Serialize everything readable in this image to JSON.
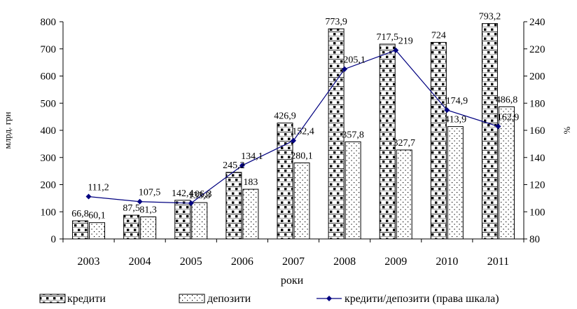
{
  "chart_data": {
    "type": "bar",
    "categories": [
      "2003",
      "2004",
      "2005",
      "2006",
      "2007",
      "2008",
      "2009",
      "2010",
      "2011"
    ],
    "series": [
      {
        "name": "кредити",
        "values": [
          66.8,
          87.5,
          142.4,
          245.2,
          426.9,
          773.9,
          717.5,
          724,
          793.2
        ],
        "labels": [
          "66,8",
          "87,5",
          "142,4",
          "245,2",
          "426,9",
          "773,9",
          "717,5",
          "724",
          "793,2"
        ],
        "axis": "left",
        "pattern": "bricks-dots"
      },
      {
        "name": "депозити",
        "values": [
          60.1,
          81.3,
          133.8,
          183,
          280.1,
          357.8,
          327.7,
          413.9,
          486.8
        ],
        "labels": [
          "60,1",
          "81,3",
          "133,8",
          "183",
          "280,1",
          "357,8",
          "327,7",
          "413,9",
          "486,8"
        ],
        "axis": "left",
        "pattern": "dots"
      },
      {
        "name": "кредити/депозити (права шкала)",
        "type": "line",
        "values": [
          111.2,
          107.5,
          106.3,
          134.1,
          152.4,
          205.1,
          219,
          174.9,
          162.9
        ],
        "labels": [
          "111,2",
          "107,5",
          "106,3",
          "134,1",
          "152,4",
          "205,1",
          "219",
          "174,9",
          "162,9"
        ],
        "axis": "right",
        "color": "#000080"
      }
    ],
    "xlabel": "роки",
    "ylabel": "млрд. грн",
    "y2label": "%",
    "ylim": [
      0,
      800
    ],
    "y2lim": [
      80,
      240
    ],
    "yticks": [
      0,
      100,
      200,
      300,
      400,
      500,
      600,
      700,
      800
    ],
    "y2ticks": [
      80,
      100,
      120,
      140,
      160,
      180,
      200,
      220,
      240
    ],
    "grid": false,
    "legend_position": "bottom"
  }
}
